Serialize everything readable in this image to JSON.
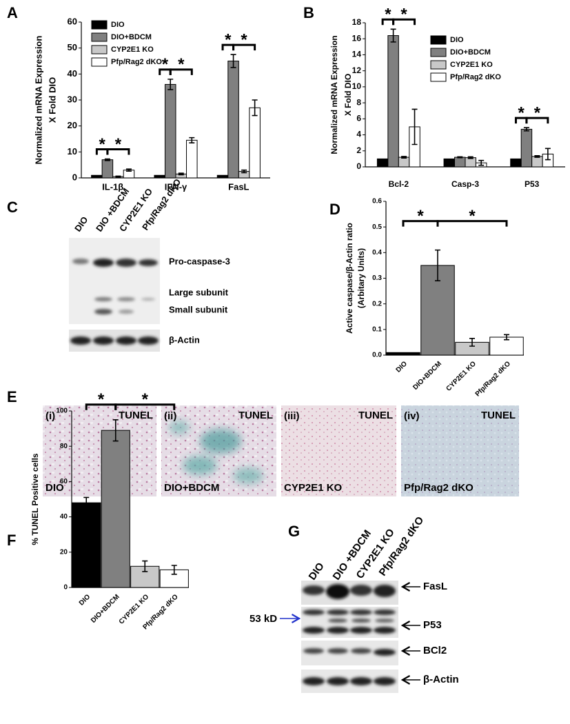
{
  "chart_data": [
    {
      "type": "bar",
      "panel": "A",
      "ylabel": [
        "Normalized mRNA Expression",
        "X Fold DIO"
      ],
      "categories": [
        "IL-1β",
        "IFN-γ",
        "FasL"
      ],
      "series": [
        {
          "name": "DIO",
          "color": "#000000",
          "values": [
            1,
            1,
            1
          ]
        },
        {
          "name": "DIO+BDCM",
          "color": "#808080",
          "values": [
            7,
            36,
            45
          ],
          "errors": [
            0.3,
            2,
            2.5
          ]
        },
        {
          "name": "CYP2E1 KO",
          "color": "#c8c8c8",
          "values": [
            0.5,
            1.5,
            2.5
          ],
          "errors": [
            0.2,
            0.3,
            0.5
          ]
        },
        {
          "name": "Pfp/Rag2 dKO",
          "color": "#ffffff",
          "values": [
            3,
            14.5,
            27
          ],
          "errors": [
            0.4,
            1,
            3
          ]
        }
      ],
      "ylim": [
        0,
        60
      ],
      "yticks": [
        0,
        10,
        20,
        30,
        40,
        50,
        60
      ],
      "significance": [
        [
          "*",
          "*"
        ],
        [
          "*",
          "*"
        ],
        [
          "*",
          "*"
        ]
      ]
    },
    {
      "type": "bar",
      "panel": "B",
      "ylabel": [
        "Normalized mRNA Expression",
        "X Fold DIO"
      ],
      "categories": [
        "Bcl-2",
        "Casp-3",
        "P53"
      ],
      "series": [
        {
          "name": "DIO",
          "color": "#000000",
          "values": [
            1,
            1,
            1
          ]
        },
        {
          "name": "DIO+BDCM",
          "color": "#808080",
          "values": [
            16.4,
            1.2,
            4.7
          ],
          "errors": [
            0.8,
            0.05,
            0.2
          ]
        },
        {
          "name": "CYP2E1 KO",
          "color": "#c8c8c8",
          "values": [
            1.2,
            1.15,
            1.3
          ],
          "errors": [
            0.1,
            0.1,
            0.1
          ]
        },
        {
          "name": "Pfp/Rag2 dKO",
          "color": "#ffffff",
          "values": [
            5,
            0.5,
            1.6
          ],
          "errors": [
            2.2,
            0.3,
            0.7
          ]
        }
      ],
      "ylim": [
        0,
        18
      ],
      "yticks": [
        0,
        2,
        4,
        6,
        8,
        10,
        12,
        14,
        16,
        18
      ],
      "significance": [
        [
          "*",
          "*"
        ],
        null,
        [
          "*",
          "*"
        ]
      ]
    },
    {
      "type": "bar",
      "panel": "D",
      "ylabel": [
        "Active caspase/β-Actin ratio",
        "(Arbitary Units)"
      ],
      "categories": [
        "DIO",
        "DIO+BDCM",
        "CYP2E1 KO",
        "Pfp/Rag2 dKO"
      ],
      "values": [
        0.01,
        0.35,
        0.05,
        0.07
      ],
      "errors": [
        null,
        0.06,
        0.015,
        0.01
      ],
      "colors": [
        "#000000",
        "#808080",
        "#c8c8c8",
        "#ffffff"
      ],
      "ylim": [
        0,
        0.6
      ],
      "yticks": [
        {
          "value": 0,
          "label": "0.0"
        },
        0.1,
        0.2,
        0.3,
        0.4,
        0.5,
        0.6
      ],
      "significance": [
        "*",
        "*"
      ]
    },
    {
      "type": "bar",
      "panel": "F",
      "ylabel": [
        "% TUNEL Positive cells"
      ],
      "categories": [
        "DIO",
        "DIO+BDCM",
        "CYP2E1 KO",
        "Pfp/Rag2 dKO"
      ],
      "values": [
        48,
        89,
        12,
        10
      ],
      "errors": [
        3,
        6,
        3,
        2.5
      ],
      "colors": [
        "#000000",
        "#808080",
        "#c8c8c8",
        "#ffffff"
      ],
      "ylim": [
        0,
        100
      ],
      "yticks": [
        0,
        20,
        40,
        60,
        80,
        100
      ],
      "significance": [
        "*",
        "*"
      ]
    }
  ],
  "blots": [
    {
      "panel": "C",
      "lanes": [
        "DIO",
        "DIO +BDCM",
        "CYP2E1 KO",
        "Pfp/Rag2 dKO"
      ],
      "bands": [
        "Pro-caspase-3",
        "Large subunit",
        "Small subunit",
        "β-Actin"
      ]
    },
    {
      "panel": "G",
      "lanes": [
        "DIO",
        "DIO +BDCM",
        "CYP2E1 KO",
        "Pfp/Rag2 dKO"
      ],
      "bands": [
        "FasL",
        "P53",
        "BCl2",
        "β-Actin"
      ],
      "marker": "53 kD"
    }
  ],
  "tunel": {
    "panel": "E",
    "images": [
      {
        "index": "(i)",
        "stain": "TUNEL",
        "label": "DIO"
      },
      {
        "index": "(ii)",
        "stain": "TUNEL",
        "label": "DIO+BDCM"
      },
      {
        "index": "(iii)",
        "stain": "TUNEL",
        "label": "CYP2E1 KO"
      },
      {
        "index": "(iv)",
        "stain": "TUNEL",
        "label": "Pfp/Rag2 dKO"
      }
    ]
  }
}
